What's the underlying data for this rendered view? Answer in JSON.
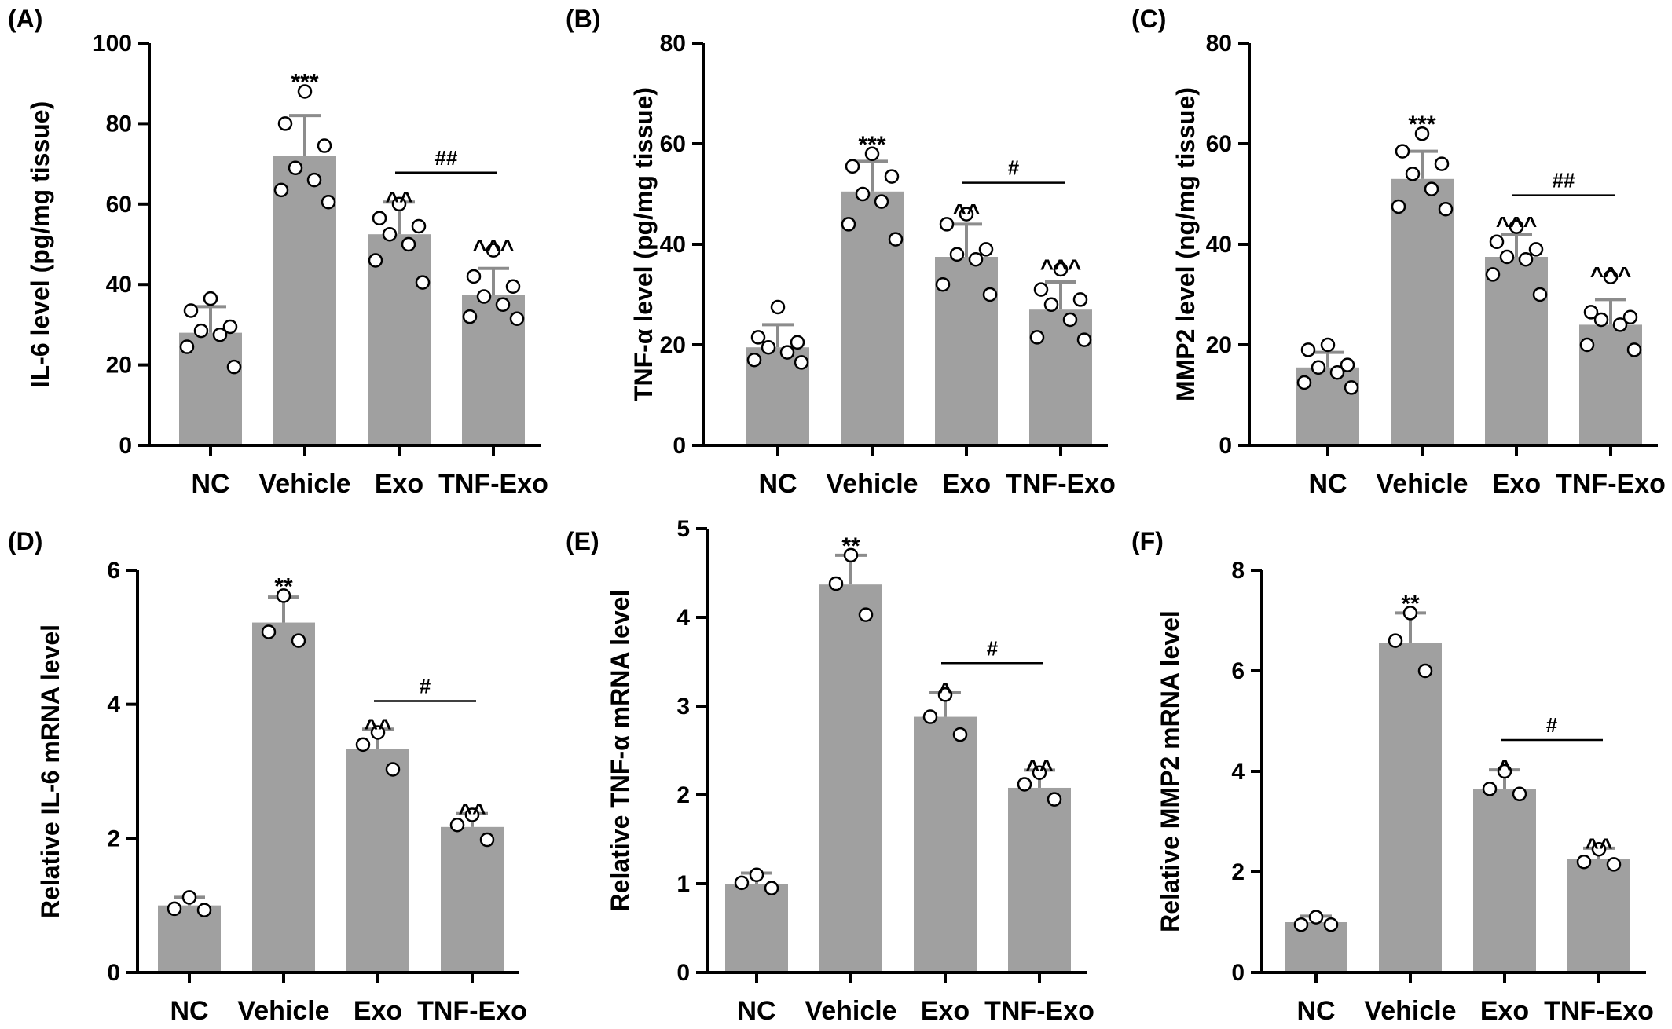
{
  "chart_data": [
    {
      "panel": "(A)",
      "type": "bar",
      "categories": [
        "NC",
        "Vehicle",
        "Exo",
        "TNF-Exo"
      ],
      "ylabel": "IL-6 level (pg/mg tissue)",
      "ylim": [
        0,
        100
      ],
      "yticks": [
        0,
        20,
        40,
        60,
        80,
        100
      ],
      "values": [
        28,
        72,
        52.5,
        37.5
      ],
      "errors": [
        6.5,
        10,
        8,
        6.5
      ],
      "points": [
        [
          36.5,
          33.5,
          29.5,
          28.5,
          27.5,
          24.5,
          19.5
        ],
        [
          88,
          80,
          74.5,
          69,
          66,
          63.5,
          60.5
        ],
        [
          60,
          56.5,
          54.5,
          52.5,
          50,
          46,
          40.5
        ],
        [
          48.5,
          42,
          39.5,
          37,
          35,
          32,
          31.5
        ]
      ],
      "significance": [
        "",
        "***",
        "^^",
        "^^^"
      ],
      "comparison": {
        "from": 2,
        "to": 3,
        "label": "##"
      }
    },
    {
      "panel": "(B)",
      "type": "bar",
      "categories": [
        "NC",
        "Vehicle",
        "Exo",
        "TNF-Exo"
      ],
      "ylabel": "TNF-α level (pg/mg tissue)",
      "ylim": [
        0,
        80
      ],
      "yticks": [
        0,
        20,
        40,
        60,
        80
      ],
      "values": [
        19.5,
        50.5,
        37.5,
        27
      ],
      "errors": [
        4.5,
        6,
        6.5,
        5.5
      ],
      "points": [
        [
          27.5,
          21.5,
          20.5,
          19.5,
          18.5,
          17,
          16.5
        ],
        [
          58,
          55.5,
          53.5,
          50,
          48.5,
          44,
          41
        ],
        [
          46,
          44,
          39,
          38,
          37,
          32,
          30
        ],
        [
          35,
          31,
          29,
          28,
          25,
          21.5,
          21
        ]
      ],
      "significance": [
        "",
        "***",
        "^^",
        "^^^"
      ],
      "comparison": {
        "from": 2,
        "to": 3,
        "label": "#"
      }
    },
    {
      "panel": "(C)",
      "type": "bar",
      "categories": [
        "NC",
        "Vehicle",
        "Exo",
        "TNF-Exo"
      ],
      "ylabel": "MMP2 level (ng/mg tissue)",
      "ylim": [
        0,
        80
      ],
      "yticks": [
        0,
        20,
        40,
        60,
        80
      ],
      "values": [
        15.5,
        53,
        37.5,
        24
      ],
      "errors": [
        3,
        5.5,
        4.5,
        5
      ],
      "points": [
        [
          20,
          19,
          16,
          15.5,
          14.5,
          12.5,
          11.5
        ],
        [
          62,
          58.5,
          56,
          54,
          51,
          47.5,
          47
        ],
        [
          43.5,
          40.5,
          39,
          37.5,
          37,
          34,
          30
        ],
        [
          33.5,
          26.5,
          25.5,
          25,
          24,
          20,
          19
        ]
      ],
      "significance": [
        "",
        "***",
        "^^^",
        "^^^"
      ],
      "comparison": {
        "from": 2,
        "to": 3,
        "label": "##"
      }
    },
    {
      "panel": "(D)",
      "type": "bar",
      "categories": [
        "NC",
        "Vehicle",
        "Exo",
        "TNF-Exo"
      ],
      "ylabel": "Relative IL-6 mRNA level",
      "ylim": [
        0,
        6
      ],
      "yticks": [
        0,
        2,
        4,
        6
      ],
      "values": [
        1.0,
        5.22,
        3.33,
        2.17
      ],
      "errors": [
        0.12,
        0.38,
        0.3,
        0.2
      ],
      "points": [
        [
          1.12,
          0.95,
          0.93
        ],
        [
          5.62,
          5.08,
          4.95
        ],
        [
          3.58,
          3.4,
          3.03
        ],
        [
          2.35,
          2.2,
          1.98
        ]
      ],
      "significance": [
        "",
        "**",
        "^^",
        "^^"
      ],
      "comparison": {
        "from": 2,
        "to": 3,
        "label": "#"
      }
    },
    {
      "panel": "(E)",
      "type": "bar",
      "categories": [
        "NC",
        "Vehicle",
        "Exo",
        "TNF-Exo"
      ],
      "ylabel": "Relative TNF-α mRNA level",
      "ylim": [
        0,
        5
      ],
      "yticks": [
        0,
        1,
        2,
        3,
        4,
        5
      ],
      "values": [
        1.0,
        4.37,
        2.88,
        2.08
      ],
      "errors": [
        0.12,
        0.33,
        0.27,
        0.2
      ],
      "points": [
        [
          1.1,
          1.01,
          0.95
        ],
        [
          4.7,
          4.38,
          4.03
        ],
        [
          3.13,
          2.88,
          2.68
        ],
        [
          2.25,
          2.12,
          1.95
        ]
      ],
      "significance": [
        "",
        "**",
        "^",
        "^^"
      ],
      "comparison": {
        "from": 2,
        "to": 3,
        "label": "#"
      }
    },
    {
      "panel": "(F)",
      "type": "bar",
      "categories": [
        "NC",
        "Vehicle",
        "Exo",
        "TNF-Exo"
      ],
      "ylabel": "Relative MMP2 mRNA level",
      "ylim": [
        0,
        8
      ],
      "yticks": [
        0,
        2,
        4,
        6,
        8
      ],
      "values": [
        1.0,
        6.55,
        3.65,
        2.25
      ],
      "errors": [
        0.12,
        0.6,
        0.38,
        0.22
      ],
      "points": [
        [
          1.1,
          0.95,
          0.95
        ],
        [
          7.15,
          6.6,
          6.0
        ],
        [
          4.0,
          3.65,
          3.55
        ],
        [
          2.45,
          2.2,
          2.15
        ]
      ],
      "significance": [
        "",
        "**",
        "^",
        "^^"
      ],
      "comparison": {
        "from": 2,
        "to": 3,
        "label": "#"
      }
    }
  ]
}
